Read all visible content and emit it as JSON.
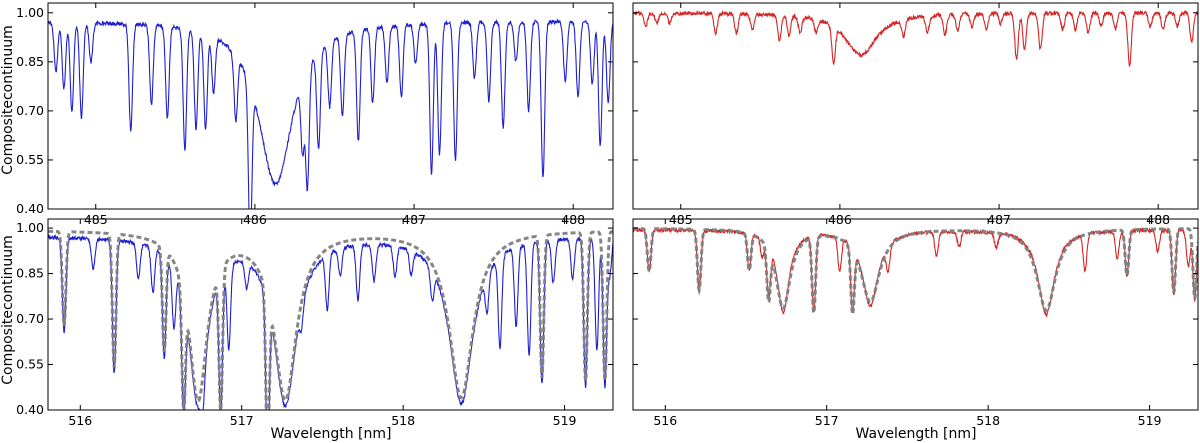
{
  "figure": {
    "ylabel": "Compositecontinuum",
    "xlabel": "Wavelength [nm]"
  },
  "colors": {
    "blue": "#1f1fcf",
    "red": "#d42424",
    "model": "#7f7f7f"
  },
  "chart_data": [
    {
      "id": "top-left",
      "type": "line",
      "xlim": [
        484.7,
        488.25
      ],
      "ylim": [
        0.4,
        1.03
      ],
      "xticks": [
        485,
        486,
        487,
        488
      ],
      "yticks": [
        0.4,
        0.55,
        0.7,
        0.85,
        1.0
      ],
      "show_ytick_labels": true,
      "xlabel": "",
      "ylabel": "Compositecontinuum",
      "series": [
        {
          "color": "blue",
          "style": "solid",
          "continuum": 0.975,
          "broad": [
            {
              "center": 486.13,
              "depth": 0.5,
              "sigma": 0.13
            }
          ],
          "lines": [
            [
              484.75,
              0.15
            ],
            [
              484.8,
              0.2
            ],
            [
              484.85,
              0.27
            ],
            [
              484.91,
              0.29
            ],
            [
              484.97,
              0.12
            ],
            [
              485.22,
              0.33
            ],
            [
              485.35,
              0.24
            ],
            [
              485.45,
              0.28
            ],
            [
              485.56,
              0.37
            ],
            [
              485.63,
              0.3
            ],
            [
              485.69,
              0.29
            ],
            [
              485.74,
              0.17
            ],
            [
              485.88,
              0.2
            ],
            [
              485.97,
              0.49
            ],
            [
              486.3,
              0.22
            ],
            [
              486.33,
              0.36
            ],
            [
              486.4,
              0.3
            ],
            [
              486.47,
              0.2
            ],
            [
              486.55,
              0.25
            ],
            [
              486.65,
              0.34
            ],
            [
              486.74,
              0.23
            ],
            [
              486.83,
              0.17
            ],
            [
              486.92,
              0.22
            ],
            [
              487.01,
              0.12
            ],
            [
              487.11,
              0.46
            ],
            [
              487.16,
              0.4
            ],
            [
              487.26,
              0.42
            ],
            [
              487.38,
              0.17
            ],
            [
              487.47,
              0.24
            ],
            [
              487.56,
              0.32
            ],
            [
              487.64,
              0.12
            ],
            [
              487.72,
              0.27
            ],
            [
              487.81,
              0.48
            ],
            [
              487.95,
              0.18
            ],
            [
              488.03,
              0.23
            ],
            [
              488.12,
              0.19
            ],
            [
              488.17,
              0.38
            ],
            [
              488.22,
              0.25
            ]
          ]
        }
      ]
    },
    {
      "id": "top-right",
      "type": "line",
      "xlim": [
        484.7,
        488.25
      ],
      "ylim": [
        0.4,
        1.03
      ],
      "xticks": [
        485,
        486,
        487,
        488
      ],
      "yticks": [
        0.4,
        0.55,
        0.7,
        0.85,
        1.0
      ],
      "show_ytick_labels": false,
      "xlabel": "",
      "ylabel": "",
      "series": [
        {
          "color": "red",
          "style": "solid",
          "continuum": 1.0,
          "broad": [
            {
              "center": 486.13,
              "depth": 0.13,
              "sigma": 0.12
            }
          ],
          "lines": [
            [
              484.78,
              0.04
            ],
            [
              484.85,
              0.03
            ],
            [
              484.93,
              0.03
            ],
            [
              485.22,
              0.06
            ],
            [
              485.35,
              0.06
            ],
            [
              485.45,
              0.05
            ],
            [
              485.62,
              0.08
            ],
            [
              485.68,
              0.06
            ],
            [
              485.75,
              0.05
            ],
            [
              485.85,
              0.04
            ],
            [
              485.96,
              0.11
            ],
            [
              486.4,
              0.05
            ],
            [
              486.55,
              0.05
            ],
            [
              486.66,
              0.06
            ],
            [
              486.74,
              0.05
            ],
            [
              486.83,
              0.04
            ],
            [
              486.92,
              0.05
            ],
            [
              487.01,
              0.03
            ],
            [
              487.11,
              0.14
            ],
            [
              487.16,
              0.11
            ],
            [
              487.26,
              0.11
            ],
            [
              487.4,
              0.05
            ],
            [
              487.48,
              0.05
            ],
            [
              487.56,
              0.06
            ],
            [
              487.64,
              0.04
            ],
            [
              487.73,
              0.05
            ],
            [
              487.82,
              0.16
            ],
            [
              487.95,
              0.04
            ],
            [
              488.03,
              0.05
            ],
            [
              488.12,
              0.04
            ],
            [
              488.21,
              0.09
            ]
          ]
        }
      ]
    },
    {
      "id": "bottom-left",
      "type": "line",
      "xlim": [
        515.8,
        519.3
      ],
      "ylim": [
        0.4,
        1.03
      ],
      "xticks": [
        516,
        517,
        518,
        519
      ],
      "yticks": [
        0.4,
        0.55,
        0.7,
        0.85,
        1.0
      ],
      "show_ytick_labels": true,
      "xlabel": "Wavelength [nm]",
      "ylabel": "Compositecontinuum",
      "series": [
        {
          "color": "blue",
          "style": "solid",
          "continuum": 0.975,
          "broad": [
            {
              "center": 516.73,
              "depth": 0.55,
              "sigma": 0.07
            },
            {
              "center": 517.27,
              "depth": 0.55,
              "sigma": 0.085
            },
            {
              "center": 518.36,
              "depth": 0.55,
              "sigma": 0.09
            }
          ],
          "lines": [
            [
              515.9,
              0.31
            ],
            [
              516.08,
              0.1
            ],
            [
              516.21,
              0.44
            ],
            [
              516.36,
              0.12
            ],
            [
              516.45,
              0.15
            ],
            [
              516.52,
              0.34
            ],
            [
              516.58,
              0.2
            ],
            [
              516.64,
              0.38
            ],
            [
              516.76,
              0.1
            ],
            [
              516.87,
              0.46
            ],
            [
              516.92,
              0.28
            ],
            [
              517.03,
              0.08
            ],
            [
              517.16,
              0.5
            ],
            [
              517.37,
              0.07
            ],
            [
              517.53,
              0.18
            ],
            [
              517.61,
              0.09
            ],
            [
              517.72,
              0.18
            ],
            [
              517.82,
              0.12
            ],
            [
              517.95,
              0.1
            ],
            [
              518.05,
              0.08
            ],
            [
              518.18,
              0.1
            ],
            [
              518.52,
              0.12
            ],
            [
              518.6,
              0.3
            ],
            [
              518.7,
              0.26
            ],
            [
              518.78,
              0.37
            ],
            [
              518.86,
              0.47
            ],
            [
              518.93,
              0.14
            ],
            [
              519.05,
              0.13
            ],
            [
              519.13,
              0.49
            ],
            [
              519.2,
              0.37
            ],
            [
              519.25,
              0.49
            ],
            [
              519.28,
              0.12
            ]
          ]
        },
        {
          "color": "model",
          "style": "dashed",
          "continuum": 0.995,
          "broad": [
            {
              "center": 516.73,
              "depth": 0.55,
              "sigma": 0.07
            },
            {
              "center": 517.27,
              "depth": 0.55,
              "sigma": 0.085
            },
            {
              "center": 518.36,
              "depth": 0.55,
              "sigma": 0.09
            }
          ],
          "lines": [
            [
              515.9,
              0.31
            ],
            [
              516.21,
              0.44
            ],
            [
              516.52,
              0.34
            ],
            [
              516.64,
              0.38
            ],
            [
              516.87,
              0.46
            ],
            [
              517.16,
              0.5
            ],
            [
              518.86,
              0.47
            ],
            [
              519.13,
              0.49
            ],
            [
              519.25,
              0.49
            ]
          ]
        }
      ]
    },
    {
      "id": "bottom-right",
      "type": "line",
      "xlim": [
        515.8,
        519.3
      ],
      "ylim": [
        0.4,
        1.03
      ],
      "xticks": [
        516,
        517,
        518,
        519
      ],
      "yticks": [
        0.4,
        0.55,
        0.7,
        0.85,
        1.0
      ],
      "show_ytick_labels": false,
      "xlabel": "Wavelength [nm]",
      "ylabel": "",
      "series": [
        {
          "color": "red",
          "style": "solid",
          "continuum": 0.995,
          "broad": [
            {
              "center": 516.73,
              "depth": 0.27,
              "sigma": 0.045
            },
            {
              "center": 517.27,
              "depth": 0.25,
              "sigma": 0.06
            },
            {
              "center": 518.36,
              "depth": 0.28,
              "sigma": 0.06
            }
          ],
          "lines": [
            [
              515.9,
              0.14
            ],
            [
              516.21,
              0.2
            ],
            [
              516.52,
              0.12
            ],
            [
              516.6,
              0.06
            ],
            [
              516.64,
              0.17
            ],
            [
              516.92,
              0.25
            ],
            [
              517.08,
              0.11
            ],
            [
              517.16,
              0.21
            ],
            [
              517.38,
              0.08
            ],
            [
              517.68,
              0.08
            ],
            [
              517.82,
              0.05
            ],
            [
              518.05,
              0.05
            ],
            [
              518.6,
              0.12
            ],
            [
              518.8,
              0.09
            ],
            [
              518.86,
              0.15
            ],
            [
              519.05,
              0.07
            ],
            [
              519.15,
              0.21
            ],
            [
              519.24,
              0.12
            ],
            [
              519.28,
              0.23
            ]
          ]
        },
        {
          "color": "model",
          "style": "dashed",
          "continuum": 1.0,
          "broad": [
            {
              "center": 516.73,
              "depth": 0.26,
              "sigma": 0.055
            },
            {
              "center": 517.27,
              "depth": 0.24,
              "sigma": 0.07
            },
            {
              "center": 518.36,
              "depth": 0.27,
              "sigma": 0.07
            }
          ],
          "lines": [
            [
              515.9,
              0.14
            ],
            [
              516.21,
              0.2
            ],
            [
              516.52,
              0.12
            ],
            [
              516.64,
              0.17
            ],
            [
              516.92,
              0.25
            ],
            [
              517.16,
              0.21
            ],
            [
              518.86,
              0.15
            ],
            [
              519.15,
              0.21
            ],
            [
              519.28,
              0.23
            ]
          ]
        }
      ]
    }
  ]
}
